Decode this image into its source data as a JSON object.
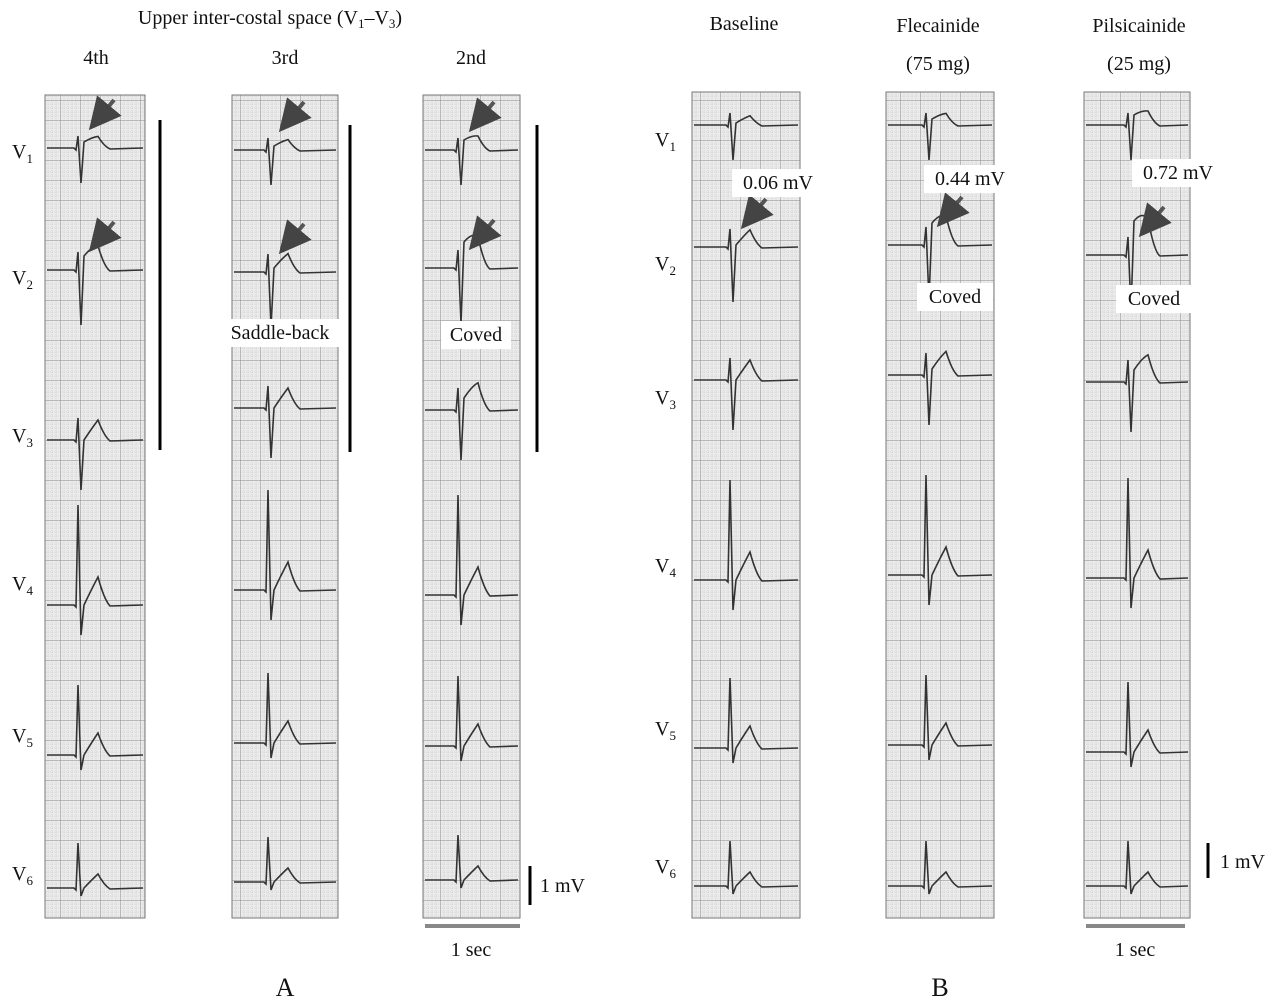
{
  "panel_a": {
    "title": {
      "text": "Upper inter-costal space (V",
      "sub1": "1",
      "mid": "–V",
      "sub2": "3",
      "end": ")"
    },
    "columns": [
      "4th",
      "3rd",
      "2nd"
    ],
    "annotations": {
      "saddle_back": "Saddle-back",
      "coved": "Coved"
    },
    "scale_mv": "1 mV",
    "scale_sec": "1 sec",
    "label": "A"
  },
  "panel_b": {
    "columns": [
      {
        "name": "Baseline"
      },
      {
        "name": "Flecainide",
        "dose": "(75 mg)"
      },
      {
        "name": "Pilsicainide",
        "dose": "(25 mg)"
      }
    ],
    "st_elevation": [
      "0.06 mV",
      "0.44 mV",
      "0.72 mV"
    ],
    "pattern_labels": [
      "Coved",
      "Coved"
    ],
    "scale_mv": "1 mV",
    "scale_sec": "1 sec",
    "label": "B"
  },
  "leads": [
    {
      "letter": "V",
      "sub": "1"
    },
    {
      "letter": "V",
      "sub": "2"
    },
    {
      "letter": "V",
      "sub": "3"
    },
    {
      "letter": "V",
      "sub": "4"
    },
    {
      "letter": "V",
      "sub": "5"
    },
    {
      "letter": "V",
      "sub": "6"
    }
  ]
}
